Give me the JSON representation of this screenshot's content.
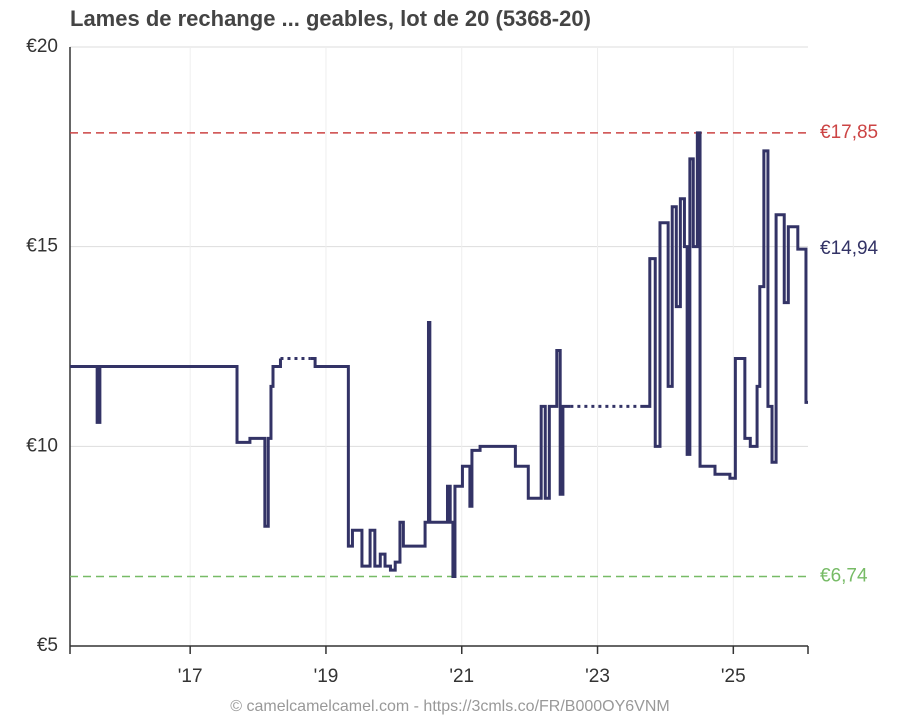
{
  "chart_data": {
    "type": "step-line",
    "title": "Lames de rechange ... geables, lot de 20 (5368-20)",
    "footer": "© camelcamelcamel.com - https://3cmls.co/FR/B000OY6VNM",
    "xlim": [
      2015.23,
      2026.1
    ],
    "xticks": [
      {
        "value": 2017,
        "label": "'17"
      },
      {
        "value": 2019,
        "label": "'19"
      },
      {
        "value": 2021,
        "label": "'21"
      },
      {
        "value": 2023,
        "label": "'23"
      },
      {
        "value": 2025,
        "label": "'25"
      }
    ],
    "ylim": [
      5,
      20
    ],
    "yticks": [
      {
        "value": 5,
        "label": "€5"
      },
      {
        "value": 10,
        "label": "€10"
      },
      {
        "value": 15,
        "label": "€15"
      },
      {
        "value": 20,
        "label": "€20"
      }
    ],
    "grid": true,
    "reference_lines": [
      {
        "value": 17.85,
        "label": "€17,85",
        "color": "#cc4444",
        "dashed": true
      },
      {
        "value": 14.94,
        "label": "€14,94",
        "color": "#333366",
        "dashed": false
      },
      {
        "value": 6.74,
        "label": "€6,74",
        "color": "#77bb66",
        "dashed": true
      }
    ],
    "series": [
      {
        "color": "#333366",
        "x": [
          2015.23,
          2015.63,
          2015.67,
          2017.69,
          2017.88,
          2018.1,
          2018.15,
          2018.19,
          2018.22,
          2018.33,
          2018.5,
          2018.77,
          2018.84,
          2019.33,
          2019.39,
          2019.5,
          2019.53,
          2019.65,
          2019.72,
          2019.8,
          2019.87,
          2019.95,
          2020.02,
          2020.09,
          2020.14,
          2020.39,
          2020.46,
          2020.51,
          2020.53,
          2020.76,
          2020.79,
          2020.83,
          2020.87,
          2020.9,
          2020.98,
          2021.01,
          2021.12,
          2021.15,
          2021.27,
          2021.71,
          2021.79,
          2021.86,
          2021.98,
          2022.15,
          2022.17,
          2022.23,
          2022.29,
          2022.38,
          2022.4,
          2022.45,
          2022.49,
          2022.6,
          2023.1,
          2023.63,
          2023.77,
          2023.85,
          2023.92,
          2023.99,
          2024.04,
          2024.1,
          2024.16,
          2024.22,
          2024.28,
          2024.32,
          2024.36,
          2024.41,
          2024.47,
          2024.51,
          2024.69,
          2024.73,
          2024.88,
          2024.95,
          2025.03,
          2025.13,
          2025.17,
          2025.25,
          2025.35,
          2025.39,
          2025.45,
          2025.51,
          2025.57,
          2025.63,
          2025.69,
          2025.75,
          2025.81,
          2025.91,
          2025.95,
          2026.07
        ],
        "values": [
          12.0,
          10.6,
          12.0,
          10.1,
          10.2,
          8.0,
          10.2,
          11.5,
          12.0,
          12.2,
          null,
          12.2,
          12.0,
          7.5,
          7.9,
          7.9,
          7.0,
          7.9,
          7.0,
          7.3,
          7.0,
          6.9,
          7.1,
          8.1,
          7.5,
          7.5,
          8.1,
          13.1,
          8.1,
          8.1,
          9.0,
          8.1,
          6.74,
          9.0,
          9.0,
          9.5,
          8.5,
          9.9,
          10.0,
          10.0,
          9.5,
          9.5,
          8.7,
          8.7,
          11.0,
          8.7,
          11.0,
          11.0,
          12.4,
          8.8,
          11.0,
          11.0,
          null,
          11.0,
          14.7,
          10.0,
          15.6,
          15.6,
          11.5,
          16.0,
          13.5,
          16.2,
          15.0,
          9.8,
          17.2,
          15.0,
          17.85,
          9.5,
          9.5,
          9.3,
          9.3,
          9.2,
          12.2,
          12.2,
          10.2,
          10.0,
          11.5,
          14.0,
          17.4,
          11.0,
          9.6,
          15.8,
          15.8,
          13.6,
          15.5,
          15.5,
          14.94,
          11.1
        ]
      }
    ]
  }
}
